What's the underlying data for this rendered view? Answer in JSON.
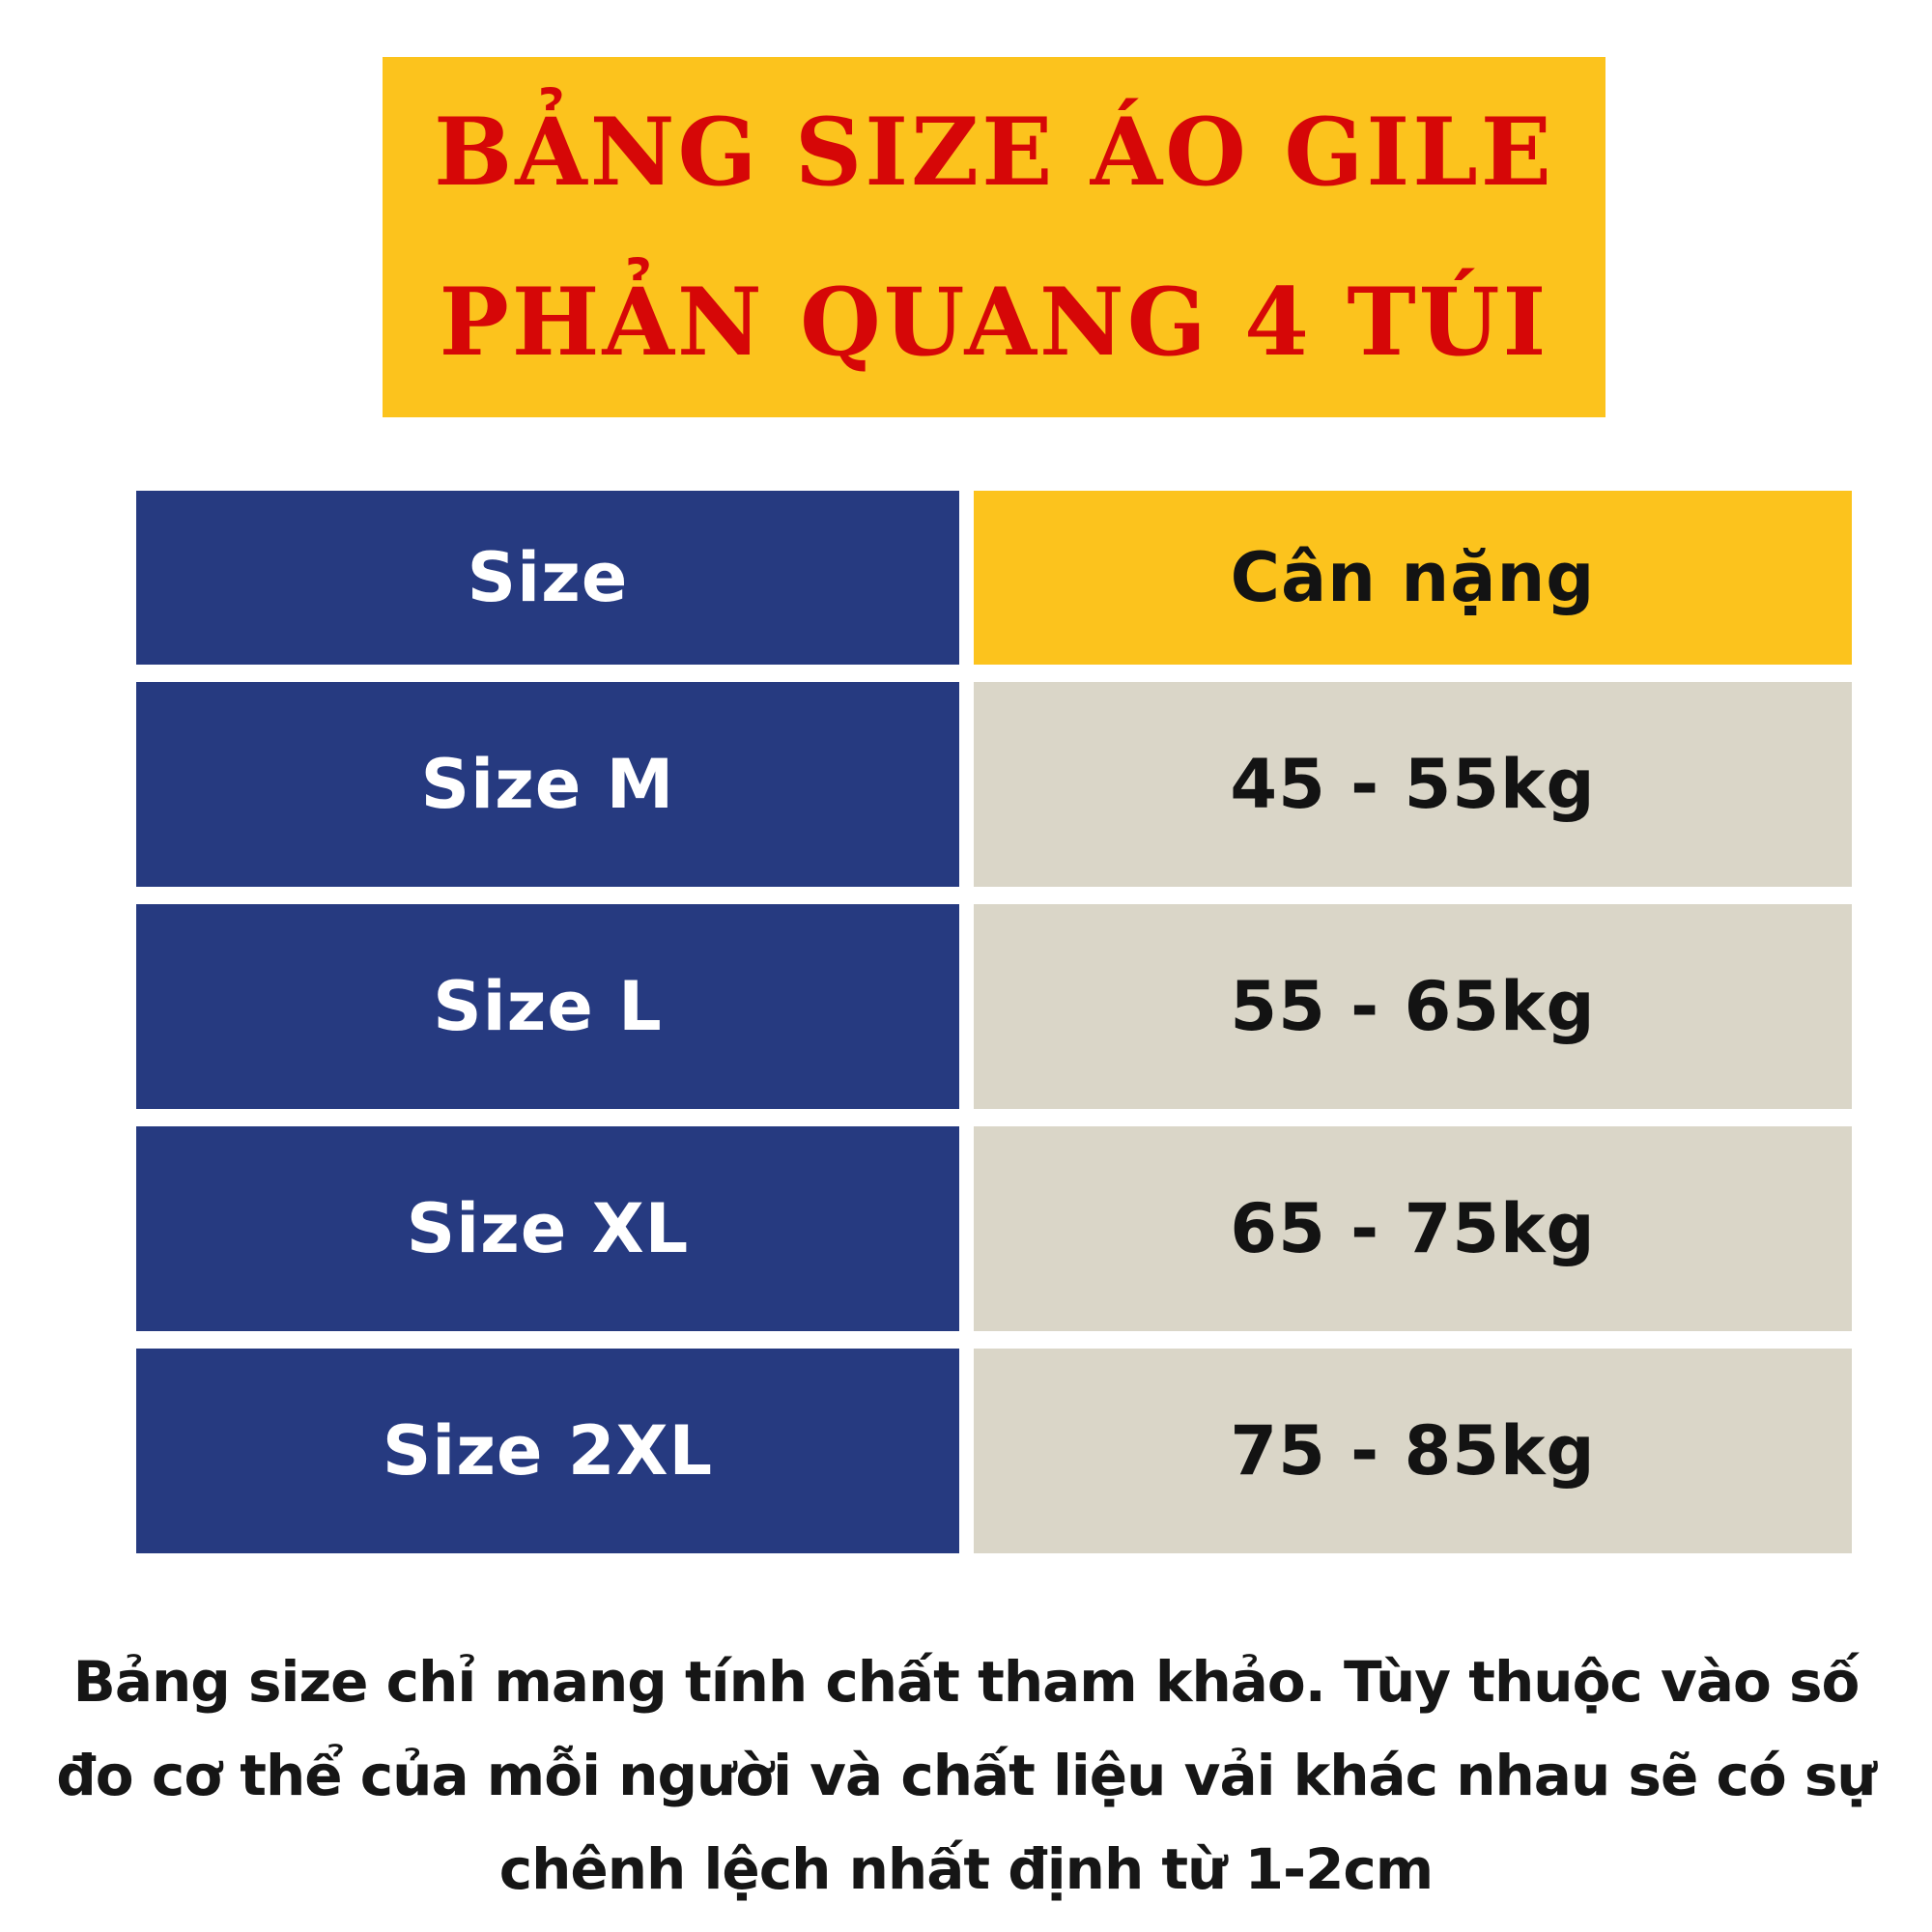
{
  "title": {
    "line1": "BẢNG SIZE ÁO GILE",
    "line2": "PHẢN QUANG 4 TÚI"
  },
  "table": {
    "headers": {
      "size": "Size",
      "weight": "Cân nặng"
    },
    "rows": [
      {
        "size": "Size M",
        "weight": "45 - 55kg"
      },
      {
        "size": "Size L",
        "weight": "55 - 65kg"
      },
      {
        "size": "Size XL",
        "weight": "65 - 75kg"
      },
      {
        "size": "Size 2XL",
        "weight": "75 - 85kg"
      }
    ]
  },
  "footer": {
    "lines": [
      "Bảng size chỉ mang tính chất tham khảo. Tùy thuộc vào số",
      "đo cơ thể của mỗi người và chất liệu vải khác nhau sẽ có sự",
      "chênh lệch nhất định từ 1-2cm"
    ]
  },
  "colors": {
    "banner_yellow": "#FCC31D",
    "title_red": "#D60707",
    "navy_blue": "#263A80",
    "weight_beige": "#DAD6C8",
    "text_black": "#131313",
    "background_white": "#FFFFFF"
  }
}
